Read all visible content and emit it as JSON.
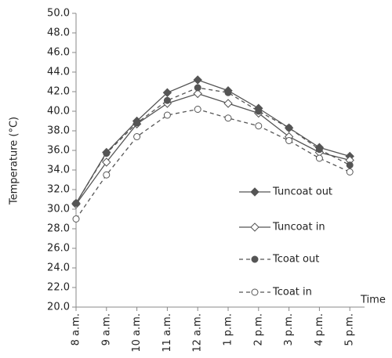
{
  "chart_data": {
    "type": "line",
    "y_label": "Temperature (°C)",
    "x_label": "Time",
    "categories": [
      "8 a.m.",
      "9 a.m.",
      "10 a.m.",
      "11 a.m.",
      "12 a.m.",
      "1 p.m.",
      "2 p.m.",
      "3 p.m.",
      "4 p.m.",
      "5 p.m."
    ],
    "series": [
      {
        "name": "Tuncoat out",
        "color": "#555555",
        "marker": "diamond",
        "filled": true,
        "dashed": false,
        "values": [
          30.6,
          35.8,
          39.0,
          41.9,
          43.2,
          42.1,
          40.3,
          38.3,
          36.3,
          35.4
        ]
      },
      {
        "name": "Tuncoat in",
        "color": "#555555",
        "marker": "diamond",
        "filled": false,
        "dashed": false,
        "values": [
          30.5,
          34.8,
          38.7,
          40.8,
          41.8,
          40.8,
          39.8,
          37.4,
          35.8,
          35.0
        ]
      },
      {
        "name": "Tcoat out",
        "color": "#555555",
        "marker": "circle",
        "filled": true,
        "dashed": true,
        "values": [
          30.6,
          35.7,
          38.8,
          41.1,
          42.4,
          41.9,
          40.0,
          38.3,
          36.1,
          34.5
        ]
      },
      {
        "name": "Tcoat in",
        "color": "#555555",
        "marker": "circle",
        "filled": false,
        "dashed": true,
        "values": [
          29.0,
          33.5,
          37.4,
          39.6,
          40.2,
          39.3,
          38.5,
          37.0,
          35.2,
          33.8
        ]
      }
    ],
    "ylim": [
      20,
      50
    ],
    "yticks": [
      {
        "value": 20,
        "label": "20.0"
      },
      {
        "value": 22,
        "label": "22.0"
      },
      {
        "value": 24,
        "label": "24.0"
      },
      {
        "value": 26,
        "label": "26.0"
      },
      {
        "value": 28,
        "label": "28.0"
      },
      {
        "value": 30,
        "label": "30.0"
      },
      {
        "value": 32,
        "label": "32.0"
      },
      {
        "value": 34,
        "label": "34.0"
      },
      {
        "value": 36,
        "label": "36.0"
      },
      {
        "value": 38,
        "label": "38.0"
      },
      {
        "value": 40,
        "label": "40.0"
      },
      {
        "value": 42,
        "label": "42.0"
      },
      {
        "value": 44,
        "label": "44.0"
      },
      {
        "value": 46,
        "label": "46.0"
      },
      {
        "value": 48,
        "label": "48.0"
      },
      {
        "value": 50,
        "label": "50.0"
      }
    ],
    "grid": false,
    "legend": "right"
  }
}
